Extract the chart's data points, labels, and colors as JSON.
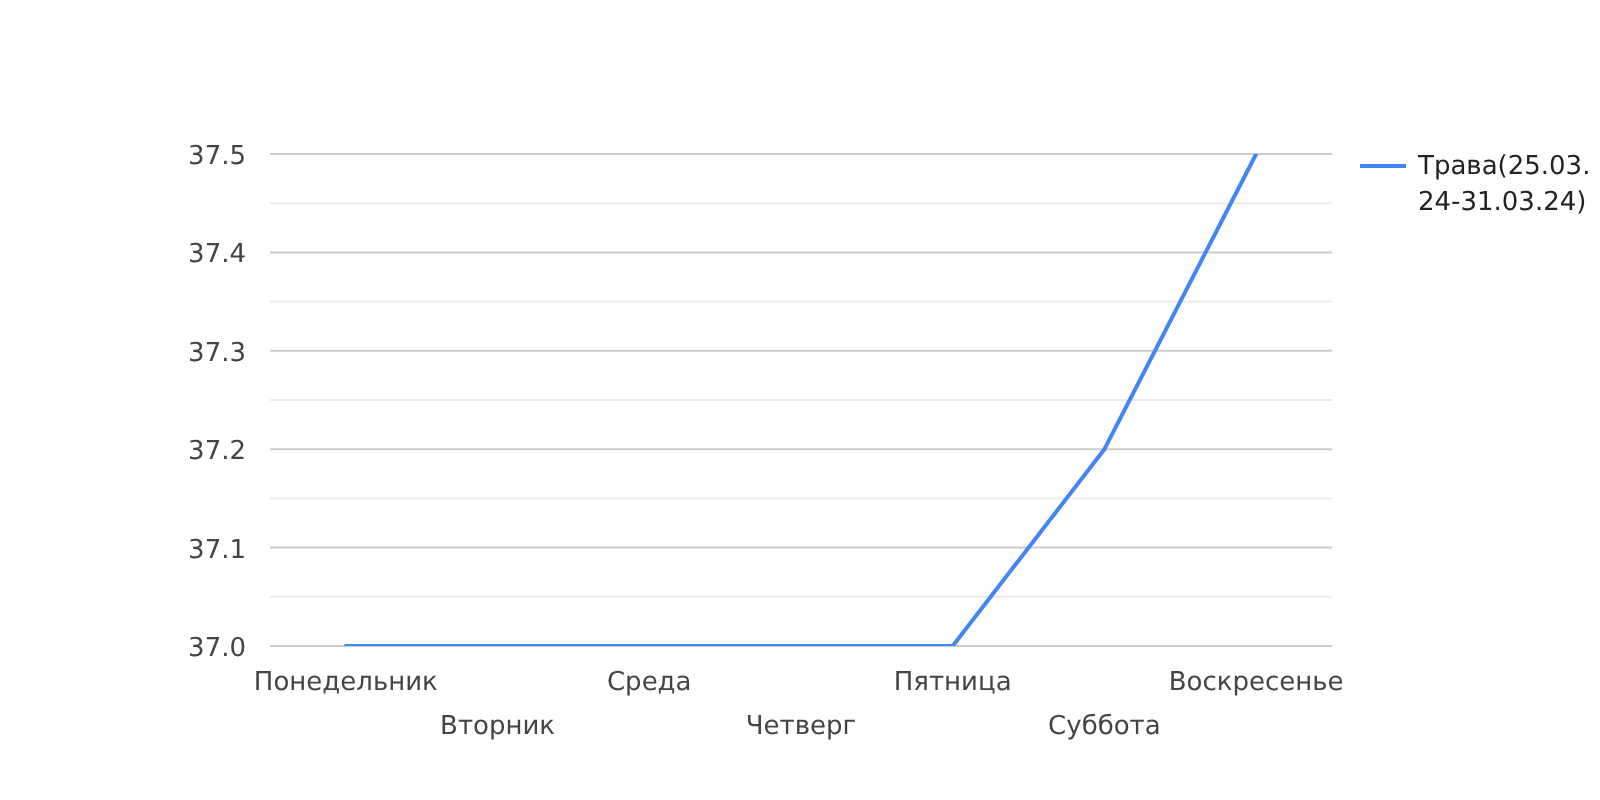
{
  "chart_data": {
    "type": "line",
    "categories": [
      "Понедельник",
      "Вторник",
      "Среда",
      "Четверг",
      "Пятница",
      "Суббота",
      "Воскресенье"
    ],
    "series": [
      {
        "name": "Трава(25.03.24-31.03.24)",
        "color": "#4285f4",
        "values": [
          37,
          37,
          37,
          37,
          37,
          37.2,
          37.5
        ]
      }
    ],
    "ylim": [
      37,
      37.5
    ],
    "yticks": [
      {
        "value": 37,
        "label": "37.0"
      },
      {
        "value": 37.05,
        "label": null
      },
      37.1,
      {
        "value": 37.15,
        "label": null
      },
      37.2,
      {
        "value": 37.25,
        "label": null
      },
      37.3,
      {
        "value": 37.35,
        "label": null
      },
      37.4,
      {
        "value": 37.45,
        "label": null
      },
      37.5
    ],
    "grid": "y",
    "legend": "top right",
    "marker": "none",
    "line_style": "solid"
  }
}
